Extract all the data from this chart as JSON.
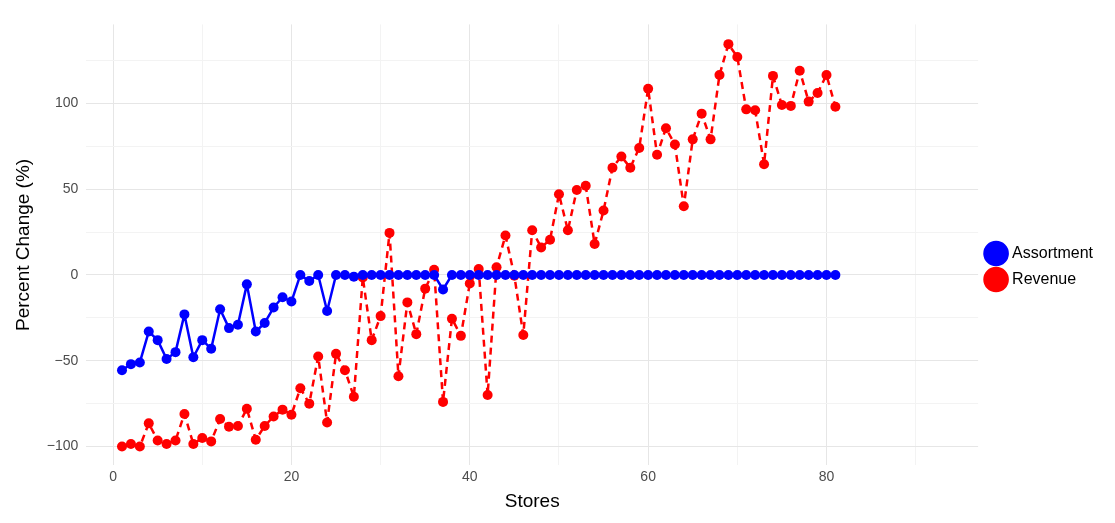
{
  "chart_data": {
    "type": "line",
    "xlabel": "Stores",
    "ylabel": "Percent Change (%)",
    "x": [
      1,
      2,
      3,
      4,
      5,
      6,
      7,
      8,
      9,
      10,
      11,
      12,
      13,
      14,
      15,
      16,
      17,
      18,
      19,
      20,
      21,
      22,
      23,
      24,
      25,
      26,
      27,
      28,
      29,
      30,
      31,
      32,
      33,
      34,
      35,
      36,
      37,
      38,
      39,
      40,
      41,
      42,
      43,
      44,
      45,
      46,
      47,
      48,
      49,
      50,
      51,
      52,
      53,
      54,
      55,
      56,
      57,
      58,
      59,
      60,
      61,
      62,
      63,
      64,
      65,
      66,
      67,
      68,
      69,
      70,
      71,
      72,
      73,
      74,
      75,
      76,
      77,
      78,
      79,
      80,
      81
    ],
    "series": [
      {
        "name": "Assortment",
        "color": "#0000ff",
        "line_style": "solid",
        "values": [
          -55.5,
          -52,
          -51,
          -33,
          -38,
          -49,
          -45,
          -23,
          -48,
          -38,
          -43,
          -20,
          -31,
          -29,
          -5.5,
          -33,
          -28,
          -19,
          -13,
          -15.5,
          0,
          -3.5,
          0,
          -21,
          0,
          0,
          -1,
          0,
          0,
          0,
          0,
          0,
          0,
          0,
          0,
          0,
          -8.5,
          0,
          0,
          0,
          0,
          0,
          0,
          0,
          0,
          0,
          0,
          0,
          0,
          0,
          0,
          0,
          0,
          0,
          0,
          0,
          0,
          0,
          0,
          0,
          0,
          0,
          0,
          0,
          0,
          0,
          0,
          0,
          0,
          0,
          0,
          0,
          0,
          0,
          0,
          0,
          0,
          0,
          0,
          0,
          0
        ]
      },
      {
        "name": "Revenue",
        "color": "#ff0000",
        "line_style": "dashed",
        "values": [
          -100,
          -98.5,
          -100,
          -86.5,
          -96.5,
          -98.5,
          -96.5,
          -81,
          -98.5,
          -95,
          -97,
          -84,
          -88.5,
          -88,
          -78,
          -96,
          -88,
          -82.5,
          -78.5,
          -81.5,
          -66,
          -75,
          -47.5,
          -86,
          -46,
          -55.5,
          -71,
          -1.5,
          -38,
          -24,
          24.5,
          -59,
          -16,
          -34.5,
          -8,
          3,
          -74,
          -25.5,
          -35.5,
          -5,
          3.5,
          -70,
          4.5,
          23,
          -0.5,
          -35,
          26,
          16,
          20.5,
          47,
          26,
          49.5,
          52,
          18,
          37.5,
          62.5,
          69,
          62.5,
          74,
          108.5,
          70,
          85.5,
          76,
          40,
          79,
          94,
          79,
          116.5,
          134.5,
          127,
          96.5,
          96,
          64.5,
          116,
          99,
          98.5,
          119,
          101,
          106,
          116.5,
          98
        ]
      }
    ],
    "xlim": [
      -3,
      97
    ],
    "xticks": [
      0,
      {
        "value": 10,
        "label": null
      },
      20,
      {
        "value": 30,
        "label": null
      },
      40,
      {
        "value": 50,
        "label": null
      },
      60,
      {
        "value": 70,
        "label": null
      },
      80,
      {
        "value": 90,
        "label": null
      }
    ],
    "ylim": [
      -111,
      146
    ],
    "yticks": [
      -100,
      {
        "value": -75,
        "label": null
      },
      -50,
      {
        "value": -25,
        "label": null
      },
      0,
      {
        "value": 25,
        "label": null
      },
      50,
      {
        "value": 75,
        "label": null
      },
      100,
      {
        "value": 125,
        "label": null
      }
    ],
    "grid": true,
    "legend": "right",
    "marker": "circle"
  }
}
